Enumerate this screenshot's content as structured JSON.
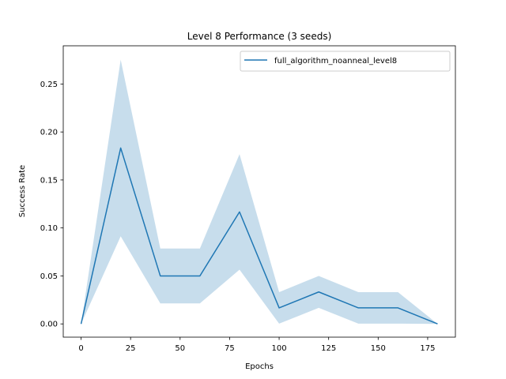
{
  "chart_data": {
    "type": "line",
    "title": "Level 8 Performance (3 seeds)",
    "xlabel": "Epochs",
    "ylabel": "Success Rate",
    "xlim": [
      -9,
      189
    ],
    "ylim": [
      -0.0138,
      0.2898
    ],
    "xticks": [
      0,
      25,
      50,
      75,
      100,
      125,
      150,
      175
    ],
    "yticks": [
      0.0,
      0.05,
      0.1,
      0.15,
      0.2,
      0.25
    ],
    "xtick_labels": [
      "0",
      "25",
      "50",
      "75",
      "100",
      "125",
      "150",
      "175"
    ],
    "ytick_labels": [
      "0.00",
      "0.05",
      "0.10",
      "0.15",
      "0.20",
      "0.25"
    ],
    "grid": false,
    "legend_position": "top-right",
    "series": [
      {
        "name": "full_algorithm_noanneal_level8",
        "color": "#1f77b4",
        "band_color": "#1f77b4",
        "x": [
          0,
          20,
          40,
          60,
          80,
          100,
          120,
          140,
          160,
          180
        ],
        "values": [
          0.0,
          0.1833,
          0.05,
          0.05,
          0.1167,
          0.0167,
          0.0333,
          0.0167,
          0.0167,
          0.0
        ],
        "upper": [
          0.0,
          0.2753,
          0.0786,
          0.0786,
          0.1769,
          0.0331,
          0.05,
          0.0331,
          0.0331,
          0.0
        ],
        "lower": [
          0.0,
          0.0913,
          0.0214,
          0.0214,
          0.0565,
          0.0003,
          0.0167,
          0.0003,
          0.0003,
          0.0
        ]
      }
    ]
  }
}
